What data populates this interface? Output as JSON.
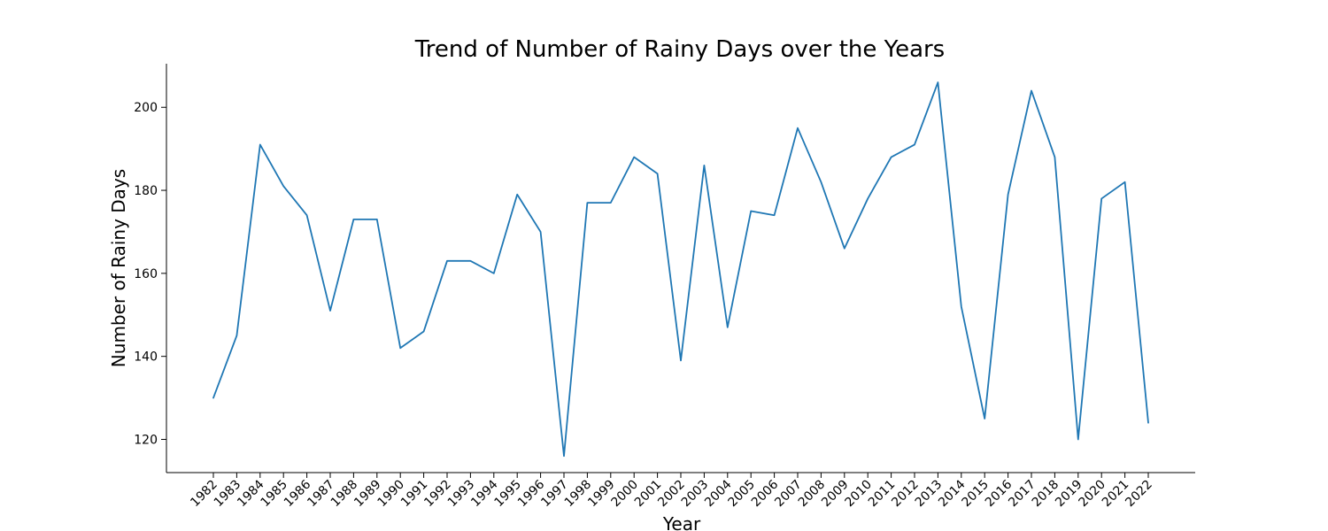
{
  "chart_data": {
    "type": "line",
    "title": "Trend of Number of Rainy Days over the Years",
    "xlabel": "Year",
    "ylabel": "Number of Rainy Days",
    "x": [
      "1982",
      "1983",
      "1984",
      "1985",
      "1986",
      "1987",
      "1988",
      "1989",
      "1990",
      "1991",
      "1992",
      "1993",
      "1994",
      "1995",
      "1996",
      "1997",
      "1998",
      "1999",
      "2000",
      "2001",
      "2002",
      "2003",
      "2004",
      "2005",
      "2006",
      "2007",
      "2008",
      "2009",
      "2010",
      "2011",
      "2012",
      "2013",
      "2014",
      "2015",
      "2016",
      "2017",
      "2018",
      "2019",
      "2020",
      "2021",
      "2022"
    ],
    "series": [
      {
        "values": [
          130,
          145,
          191,
          181,
          174,
          151,
          173,
          173,
          142,
          146,
          163,
          163,
          160,
          179,
          170,
          116,
          177,
          177,
          188,
          184,
          139,
          186,
          147,
          175,
          174,
          195,
          182,
          166,
          178,
          188,
          191,
          206,
          152,
          125,
          179,
          204,
          188,
          120,
          178,
          182,
          124
        ],
        "color": "#1f77b4"
      }
    ],
    "yticks": [
      120,
      140,
      160,
      180,
      200
    ],
    "ylim": [
      112,
      210.5
    ],
    "grid": false,
    "legend": "none"
  }
}
